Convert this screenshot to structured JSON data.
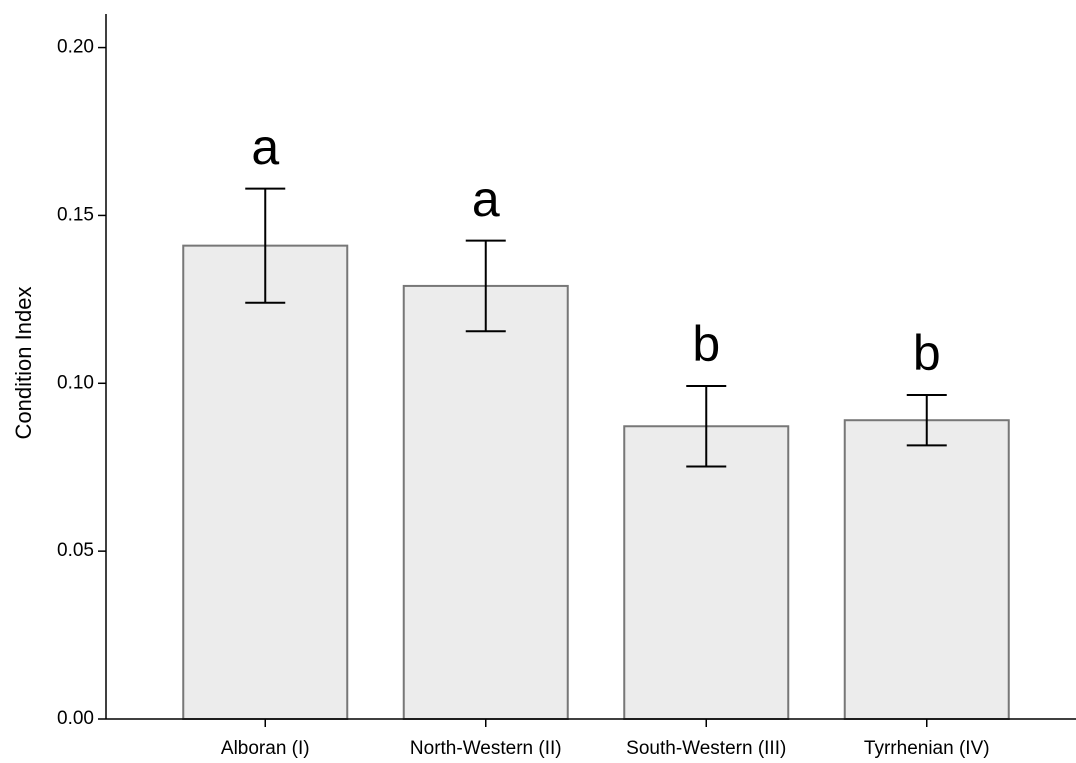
{
  "chart_data": {
    "type": "bar",
    "ylabel": "Condition Index",
    "categories": [
      "Alboran (I)",
      "North-Western (II)",
      "South-Western (III)",
      "Tyrrhenian (IV)"
    ],
    "values": [
      0.141,
      0.129,
      0.0872,
      0.089
    ],
    "errors": [
      0.017,
      0.0135,
      0.012,
      0.0075
    ],
    "annotations": [
      "a",
      "a",
      "b",
      "b"
    ],
    "color": "#ececec",
    "ylim": [
      0,
      0.21
    ],
    "yticks": [
      {
        "value": 0,
        "label": "0.00"
      },
      {
        "value": 0.05,
        "label": "0.05"
      },
      {
        "value": 0.1,
        "label": "0.10"
      },
      {
        "value": 0.15,
        "label": "0.15"
      },
      {
        "value": 0.2,
        "label": "0.20"
      }
    ],
    "grid": false
  }
}
